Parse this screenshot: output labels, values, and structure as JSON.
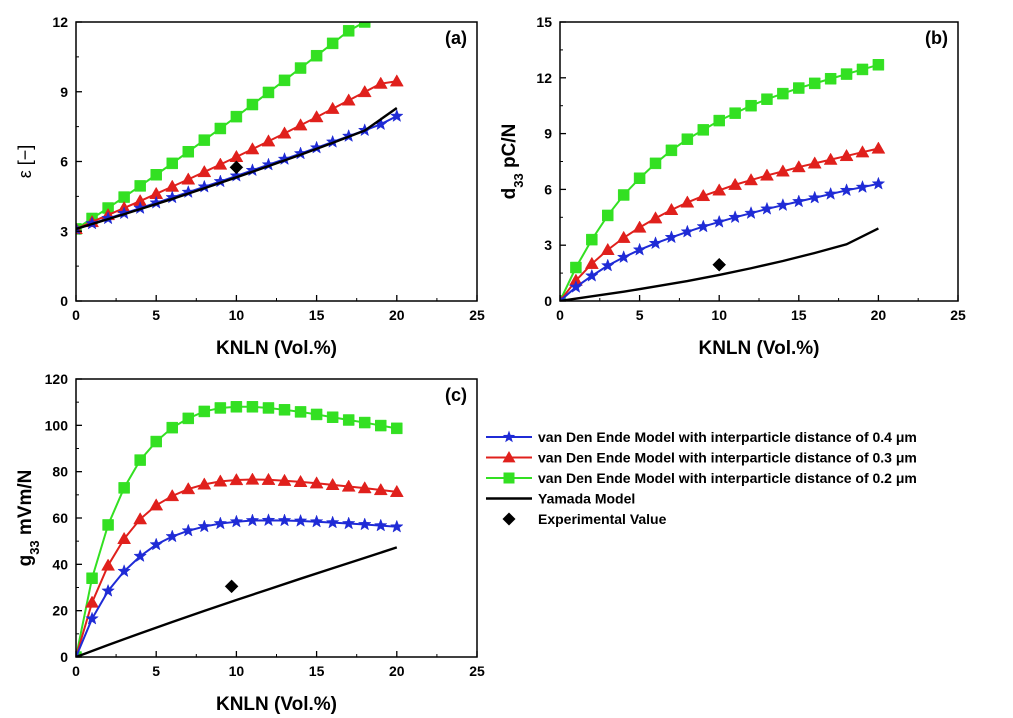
{
  "colors": {
    "blue": "#1f2bd6",
    "red": "#e0201c",
    "green": "#33e022",
    "black": "#000000"
  },
  "legend": [
    {
      "label": "van Den Ende Model with interparticle distance of 0.4 μm",
      "color": "#1f2bd6",
      "marker": "star"
    },
    {
      "label": "van Den Ende Model with interparticle distance of 0.3 μm",
      "color": "#e0201c",
      "marker": "triangle"
    },
    {
      "label": "van Den Ende Model with interparticle distance of 0.2 μm",
      "color": "#33e022",
      "marker": "square"
    },
    {
      "label": "Yamada Model",
      "color": "#000000",
      "marker": "line"
    },
    {
      "label": "Experimental Value",
      "color": "#000000",
      "marker": "diamond"
    }
  ],
  "chart_data": [
    {
      "type": "line",
      "panel_label": "(a)",
      "xlabel": "KNLN (Vol.%)",
      "ylabel": "ε [−]",
      "xlim": [
        0,
        25
      ],
      "ylim": [
        0,
        12
      ],
      "xticks": [
        "0",
        "5",
        "10",
        "15",
        "20",
        "25"
      ],
      "yticks": [
        "0",
        "3",
        "6",
        "9",
        "12"
      ],
      "grid": false,
      "series": [
        {
          "name": "van Den Ende Model with interparticle distance of 0.2 μm",
          "color": "#33e022",
          "marker": "square",
          "x": [
            0,
            1,
            2,
            3,
            4,
            5,
            6,
            7,
            8,
            9,
            10,
            11,
            12,
            13,
            14,
            15,
            16,
            17,
            18
          ],
          "y": [
            3.1,
            3.55,
            4.0,
            4.47,
            4.95,
            5.43,
            5.92,
            6.42,
            6.92,
            7.42,
            7.93,
            8.45,
            8.97,
            9.49,
            10.02,
            10.55,
            11.08,
            11.62,
            12.0
          ]
        },
        {
          "name": "van Den Ende Model with interparticle distance of 0.3 μm",
          "color": "#e0201c",
          "marker": "triangle",
          "x": [
            0,
            1,
            2,
            3,
            4,
            5,
            6,
            7,
            8,
            9,
            10,
            11,
            12,
            13,
            14,
            15,
            16,
            17,
            18,
            19,
            20
          ],
          "y": [
            3.1,
            3.4,
            3.7,
            4.0,
            4.3,
            4.61,
            4.92,
            5.23,
            5.55,
            5.87,
            6.2,
            6.53,
            6.87,
            7.21,
            7.56,
            7.91,
            8.27,
            8.63,
            8.99,
            9.35,
            9.45
          ]
        },
        {
          "name": "van Den Ende Model with interparticle distance of 0.4 μm",
          "color": "#1f2bd6",
          "marker": "star",
          "x": [
            0,
            1,
            2,
            3,
            4,
            5,
            6,
            7,
            8,
            9,
            10,
            11,
            12,
            13,
            14,
            15,
            16,
            17,
            18,
            19,
            20
          ],
          "y": [
            3.1,
            3.33,
            3.55,
            3.77,
            3.99,
            4.22,
            4.45,
            4.68,
            4.91,
            5.14,
            5.38,
            5.62,
            5.86,
            6.1,
            6.34,
            6.59,
            6.84,
            7.09,
            7.34,
            7.6,
            7.95
          ]
        },
        {
          "name": "Yamada Model",
          "color": "#000000",
          "marker": "none",
          "x": [
            0,
            2,
            4,
            6,
            8,
            10,
            12,
            14,
            16,
            18,
            20
          ],
          "y": [
            3.1,
            3.52,
            3.95,
            4.39,
            4.85,
            5.32,
            5.8,
            6.29,
            6.8,
            7.33,
            8.3
          ]
        },
        {
          "name": "Experimental Value",
          "color": "#000000",
          "marker": "diamond",
          "x": [
            10
          ],
          "y": [
            5.75
          ]
        }
      ]
    },
    {
      "type": "line",
      "panel_label": "(b)",
      "xlabel": "KNLN (Vol.%)",
      "ylabel": "d33 pC/N",
      "ylabel_main": "d",
      "ylabel_sub": "33",
      "ylabel_rest": " pC/N",
      "xlim": [
        0,
        25
      ],
      "ylim": [
        0,
        15
      ],
      "xticks": [
        "0",
        "5",
        "10",
        "15",
        "20",
        "25"
      ],
      "yticks": [
        "0",
        "3",
        "6",
        "9",
        "12",
        "15"
      ],
      "grid": false,
      "series": [
        {
          "name": "van Den Ende Model with interparticle distance of 0.2 μm",
          "color": "#33e022",
          "marker": "square",
          "x": [
            0,
            1,
            2,
            3,
            4,
            5,
            6,
            7,
            8,
            9,
            10,
            11,
            12,
            13,
            14,
            15,
            16,
            17,
            18,
            19,
            20
          ],
          "y": [
            0,
            1.8,
            3.3,
            4.6,
            5.7,
            6.6,
            7.4,
            8.1,
            8.7,
            9.2,
            9.7,
            10.1,
            10.5,
            10.85,
            11.15,
            11.45,
            11.7,
            11.95,
            12.2,
            12.45,
            12.7
          ]
        },
        {
          "name": "van Den Ende Model with interparticle distance of 0.3 μm",
          "color": "#e0201c",
          "marker": "triangle",
          "x": [
            0,
            1,
            2,
            3,
            4,
            5,
            6,
            7,
            8,
            9,
            10,
            11,
            12,
            13,
            14,
            15,
            16,
            17,
            18,
            19,
            20
          ],
          "y": [
            0,
            1.1,
            2.0,
            2.75,
            3.4,
            3.95,
            4.45,
            4.9,
            5.3,
            5.65,
            5.95,
            6.25,
            6.5,
            6.75,
            6.97,
            7.2,
            7.4,
            7.6,
            7.8,
            8.0,
            8.2
          ]
        },
        {
          "name": "van Den Ende Model with interparticle distance of 0.4 μm",
          "color": "#1f2bd6",
          "marker": "star",
          "x": [
            0,
            1,
            2,
            3,
            4,
            5,
            6,
            7,
            8,
            9,
            10,
            11,
            12,
            13,
            14,
            15,
            16,
            17,
            18,
            19,
            20
          ],
          "y": [
            0,
            0.75,
            1.35,
            1.9,
            2.35,
            2.75,
            3.1,
            3.42,
            3.72,
            4.0,
            4.25,
            4.5,
            4.72,
            4.95,
            5.15,
            5.35,
            5.55,
            5.75,
            5.95,
            6.12,
            6.3
          ]
        },
        {
          "name": "Yamada Model",
          "color": "#000000",
          "marker": "none",
          "x": [
            0,
            2,
            4,
            6,
            8,
            10,
            12,
            14,
            16,
            18,
            20
          ],
          "y": [
            0,
            0.25,
            0.5,
            0.78,
            1.07,
            1.4,
            1.76,
            2.15,
            2.58,
            3.05,
            3.9
          ]
        },
        {
          "name": "Experimental Value",
          "color": "#000000",
          "marker": "diamond",
          "x": [
            10
          ],
          "y": [
            1.95
          ]
        }
      ]
    },
    {
      "type": "line",
      "panel_label": "(c)",
      "xlabel": "KNLN (Vol.%)",
      "ylabel": "g33 mVm/N",
      "ylabel_main": "g",
      "ylabel_sub": "33",
      "ylabel_rest": " mVm/N",
      "xlim": [
        0,
        25
      ],
      "ylim": [
        0,
        120
      ],
      "xticks": [
        "0",
        "5",
        "10",
        "15",
        "20",
        "25"
      ],
      "yticks": [
        "0",
        "20",
        "40",
        "60",
        "80",
        "100",
        "120"
      ],
      "grid": false,
      "series": [
        {
          "name": "van Den Ende Model with interparticle distance of 0.2 μm",
          "color": "#33e022",
          "marker": "square",
          "x": [
            0,
            1,
            2,
            3,
            4,
            5,
            6,
            7,
            8,
            9,
            10,
            11,
            12,
            13,
            14,
            15,
            16,
            17,
            18,
            19,
            20
          ],
          "y": [
            0,
            34,
            57,
            73,
            85,
            93,
            99,
            103,
            106,
            107.5,
            108,
            108,
            107.5,
            106.7,
            105.8,
            104.7,
            103.5,
            102.3,
            101.2,
            99.9,
            98.7
          ]
        },
        {
          "name": "van Den Ende Model with interparticle distance of 0.3 μm",
          "color": "#e0201c",
          "marker": "triangle",
          "x": [
            0,
            1,
            2,
            3,
            4,
            5,
            6,
            7,
            8,
            9,
            10,
            11,
            12,
            13,
            14,
            15,
            16,
            17,
            18,
            19,
            20
          ],
          "y": [
            0,
            23.5,
            39.5,
            51,
            59.5,
            65.5,
            69.5,
            72.5,
            74.5,
            75.8,
            76.4,
            76.6,
            76.5,
            76.1,
            75.6,
            75.0,
            74.3,
            73.6,
            72.9,
            72.1,
            71.3
          ]
        },
        {
          "name": "van Den Ende Model with interparticle distance of 0.4 μm",
          "color": "#1f2bd6",
          "marker": "star",
          "x": [
            0,
            1,
            2,
            3,
            4,
            5,
            6,
            7,
            8,
            9,
            10,
            11,
            12,
            13,
            14,
            15,
            16,
            17,
            18,
            19,
            20
          ],
          "y": [
            0,
            16.5,
            28.5,
            37,
            43.5,
            48.5,
            52,
            54.5,
            56.3,
            57.6,
            58.4,
            58.9,
            59.0,
            58.9,
            58.7,
            58.4,
            58.0,
            57.6,
            57.2,
            56.7,
            56.2
          ]
        },
        {
          "name": "Yamada Model",
          "color": "#000000",
          "marker": "none",
          "x": [
            0,
            2,
            4,
            6,
            8,
            10,
            12,
            14,
            16,
            18,
            20
          ],
          "y": [
            0,
            5.2,
            10.2,
            15.1,
            19.9,
            24.6,
            29.2,
            33.8,
            38.3,
            42.8,
            47.3
          ]
        },
        {
          "name": "Experimental Value",
          "color": "#000000",
          "marker": "diamond",
          "x": [
            9.7
          ],
          "y": [
            30.5
          ]
        }
      ]
    }
  ]
}
